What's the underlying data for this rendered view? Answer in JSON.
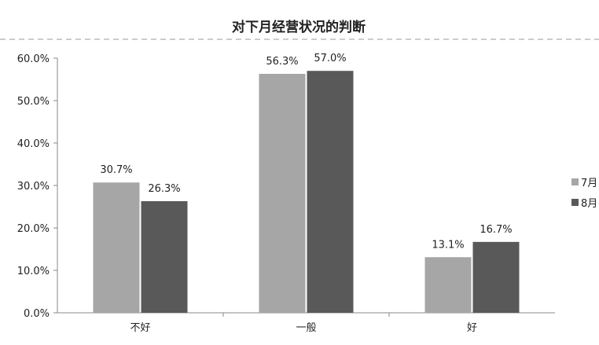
{
  "chart_data": {
    "type": "bar",
    "title": "对下月经营状况的判断",
    "categories": [
      "不好",
      "一般",
      "好"
    ],
    "series": [
      {
        "name": "7月",
        "values": [
          30.7,
          56.3,
          13.1
        ],
        "color": "#a6a6a6"
      },
      {
        "name": "8月",
        "values": [
          26.3,
          57.0,
          16.7
        ],
        "color": "#595959"
      }
    ],
    "value_format": "percent, 1 decimal",
    "ylim": [
      0,
      60
    ],
    "yticks": [
      "0.0%",
      "10.0%",
      "20.0%",
      "30.0%",
      "40.0%",
      "50.0%",
      "60.0%"
    ],
    "grid": false,
    "legend_position": "right",
    "xlabel": "",
    "ylabel": ""
  }
}
